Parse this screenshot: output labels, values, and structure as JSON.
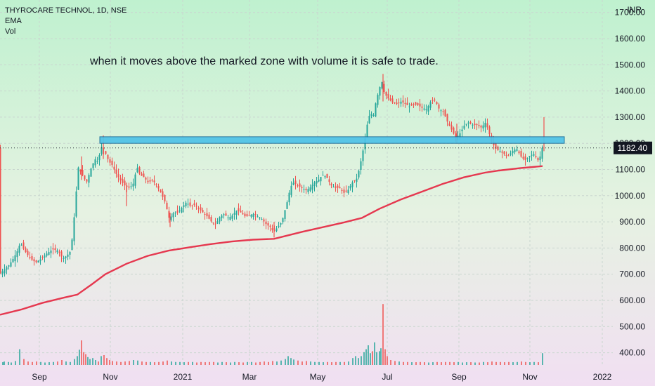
{
  "legend": {
    "symbol": "THYROCARE TECHNOL, 1D, NSE",
    "ema": "EMA",
    "vol": "Vol"
  },
  "annotation": "when it moves above the marked zone with volume it is safe to trade.",
  "currency": "INR",
  "price_badge": "1182.40",
  "colors": {
    "up": "#26a69a",
    "down": "#ef5350",
    "ema": "#e5384f",
    "zone_fill": "#4fc3e8",
    "zone_stroke": "#1a6f9c",
    "background_top": "#c2f0d0",
    "background_bottom": "#f0dff0",
    "badge": "#131722"
  },
  "chart_data": {
    "type": "candlestick",
    "x_tick_labels": [
      "Sep",
      "Nov",
      "2021",
      "Mar",
      "May",
      "Jul",
      "Sep",
      "Nov",
      "2022"
    ],
    "y_tick_labels": [
      "1700.00",
      "1600.00",
      "1500.00",
      "1400.00",
      "1300.00",
      "1200.00",
      "1100.00",
      "1000.00",
      "900.00",
      "800.00",
      "700.00",
      "600.00",
      "500.00",
      "400.00"
    ],
    "y_tick_values": [
      1700,
      1600,
      1500,
      1400,
      1300,
      1200,
      1100,
      1000,
      900,
      800,
      700,
      600,
      500,
      400
    ],
    "ylim": [
      345,
      1735
    ],
    "grid": true,
    "last_price": 1182.4,
    "marked_zone": [
      1200,
      1225
    ],
    "price_path": [
      [
        0,
        700
      ],
      [
        8,
        720
      ],
      [
        14,
        735
      ],
      [
        20,
        760
      ],
      [
        26,
        790
      ],
      [
        30,
        820
      ],
      [
        36,
        790
      ],
      [
        44,
        760
      ],
      [
        52,
        745
      ],
      [
        60,
        760
      ],
      [
        68,
        780
      ],
      [
        76,
        795
      ],
      [
        84,
        790
      ],
      [
        90,
        760
      ],
      [
        96,
        770
      ],
      [
        102,
        790
      ],
      [
        108,
        960
      ],
      [
        112,
        1110
      ],
      [
        118,
        1080
      ],
      [
        124,
        1050
      ],
      [
        130,
        1100
      ],
      [
        136,
        1140
      ],
      [
        140,
        1130
      ],
      [
        146,
        1190
      ],
      [
        150,
        1170
      ],
      [
        156,
        1130
      ],
      [
        160,
        1120
      ],
      [
        166,
        1085
      ],
      [
        172,
        1060
      ],
      [
        178,
        1040
      ],
      [
        184,
        1030
      ],
      [
        190,
        1040
      ],
      [
        196,
        1110
      ],
      [
        200,
        1080
      ],
      [
        206,
        1070
      ],
      [
        212,
        1050
      ],
      [
        218,
        1060
      ],
      [
        224,
        1040
      ],
      [
        230,
        1010
      ],
      [
        236,
        975
      ],
      [
        242,
        910
      ],
      [
        248,
        935
      ],
      [
        254,
        935
      ],
      [
        260,
        955
      ],
      [
        266,
        975
      ],
      [
        272,
        960
      ],
      [
        278,
        965
      ],
      [
        284,
        950
      ],
      [
        290,
        935
      ],
      [
        296,
        920
      ],
      [
        302,
        900
      ],
      [
        308,
        890
      ],
      [
        314,
        920
      ],
      [
        320,
        930
      ],
      [
        326,
        915
      ],
      [
        332,
        925
      ],
      [
        338,
        945
      ],
      [
        344,
        935
      ],
      [
        350,
        920
      ],
      [
        356,
        925
      ],
      [
        362,
        930
      ],
      [
        368,
        920
      ],
      [
        374,
        910
      ],
      [
        380,
        890
      ],
      [
        386,
        880
      ],
      [
        390,
        860
      ],
      [
        396,
        880
      ],
      [
        402,
        900
      ],
      [
        406,
        940
      ],
      [
        410,
        980
      ],
      [
        414,
        1030
      ],
      [
        418,
        1050
      ],
      [
        424,
        1040
      ],
      [
        430,
        1030
      ],
      [
        436,
        1020
      ],
      [
        442,
        1030
      ],
      [
        448,
        1050
      ],
      [
        454,
        1060
      ],
      [
        460,
        1080
      ],
      [
        466,
        1070
      ],
      [
        472,
        1040
      ],
      [
        478,
        1030
      ],
      [
        484,
        1030
      ],
      [
        490,
        1010
      ],
      [
        496,
        1020
      ],
      [
        502,
        1050
      ],
      [
        508,
        1060
      ],
      [
        512,
        1100
      ],
      [
        516,
        1150
      ],
      [
        520,
        1210
      ],
      [
        524,
        1280
      ],
      [
        528,
        1320
      ],
      [
        532,
        1300
      ],
      [
        536,
        1360
      ],
      [
        540,
        1400
      ],
      [
        544,
        1440
      ],
      [
        548,
        1390
      ],
      [
        554,
        1370
      ],
      [
        560,
        1355
      ],
      [
        566,
        1350
      ],
      [
        572,
        1360
      ],
      [
        578,
        1350
      ],
      [
        584,
        1340
      ],
      [
        590,
        1350
      ],
      [
        596,
        1345
      ],
      [
        602,
        1335
      ],
      [
        608,
        1330
      ],
      [
        614,
        1360
      ],
      [
        620,
        1365
      ],
      [
        626,
        1330
      ],
      [
        632,
        1320
      ],
      [
        638,
        1280
      ],
      [
        644,
        1250
      ],
      [
        650,
        1220
      ],
      [
        656,
        1240
      ],
      [
        662,
        1270
      ],
      [
        668,
        1280
      ],
      [
        674,
        1270
      ],
      [
        680,
        1270
      ],
      [
        686,
        1260
      ],
      [
        692,
        1280
      ],
      [
        696,
        1250
      ],
      [
        700,
        1210
      ],
      [
        706,
        1180
      ],
      [
        712,
        1170
      ],
      [
        718,
        1160
      ],
      [
        724,
        1150
      ],
      [
        730,
        1170
      ],
      [
        736,
        1180
      ],
      [
        742,
        1150
      ],
      [
        748,
        1135
      ],
      [
        754,
        1150
      ],
      [
        760,
        1160
      ],
      [
        764,
        1145
      ],
      [
        768,
        1130
      ],
      [
        772,
        1182.4
      ]
    ],
    "ema_path": [
      [
        0,
        545
      ],
      [
        30,
        565
      ],
      [
        60,
        590
      ],
      [
        90,
        610
      ],
      [
        110,
        622
      ],
      [
        130,
        660
      ],
      [
        150,
        700
      ],
      [
        180,
        740
      ],
      [
        210,
        770
      ],
      [
        240,
        790
      ],
      [
        270,
        803
      ],
      [
        300,
        815
      ],
      [
        330,
        825
      ],
      [
        360,
        832
      ],
      [
        390,
        835
      ],
      [
        405,
        845
      ],
      [
        430,
        862
      ],
      [
        460,
        880
      ],
      [
        490,
        898
      ],
      [
        515,
        915
      ],
      [
        540,
        950
      ],
      [
        570,
        985
      ],
      [
        600,
        1015
      ],
      [
        630,
        1045
      ],
      [
        660,
        1070
      ],
      [
        690,
        1088
      ],
      [
        710,
        1096
      ],
      [
        740,
        1105
      ],
      [
        772,
        1113
      ]
    ],
    "volume_bars": [
      [
        4,
        0.28
      ],
      [
        6,
        0.35
      ],
      [
        12,
        0.3
      ],
      [
        16,
        0.25
      ],
      [
        22,
        0.4
      ],
      [
        28,
        1.6
      ],
      [
        34,
        0.6
      ],
      [
        40,
        0.35
      ],
      [
        46,
        0.3
      ],
      [
        52,
        0.35
      ],
      [
        58,
        0.3
      ],
      [
        64,
        0.25
      ],
      [
        70,
        0.28
      ],
      [
        76,
        0.3
      ],
      [
        82,
        0.35
      ],
      [
        88,
        0.5
      ],
      [
        94,
        0.35
      ],
      [
        100,
        0.3
      ],
      [
        106,
        0.6
      ],
      [
        110,
        0.9
      ],
      [
        113,
        1.55
      ],
      [
        116,
        2.5
      ],
      [
        119,
        1.3
      ],
      [
        122,
        1.1
      ],
      [
        125,
        0.8
      ],
      [
        128,
        0.6
      ],
      [
        132,
        0.7
      ],
      [
        136,
        0.5
      ],
      [
        140,
        0.35
      ],
      [
        144,
        0.9
      ],
      [
        148,
        1.0
      ],
      [
        152,
        0.7
      ],
      [
        156,
        0.5
      ],
      [
        160,
        0.4
      ],
      [
        166,
        0.35
      ],
      [
        172,
        0.3
      ],
      [
        178,
        0.35
      ],
      [
        184,
        0.4
      ],
      [
        190,
        0.5
      ],
      [
        196,
        0.45
      ],
      [
        202,
        0.35
      ],
      [
        208,
        0.3
      ],
      [
        214,
        0.3
      ],
      [
        220,
        0.28
      ],
      [
        226,
        0.3
      ],
      [
        232,
        0.35
      ],
      [
        238,
        0.45
      ],
      [
        244,
        0.35
      ],
      [
        250,
        0.3
      ],
      [
        256,
        0.3
      ],
      [
        262,
        0.28
      ],
      [
        268,
        0.3
      ],
      [
        274,
        0.3
      ],
      [
        280,
        0.25
      ],
      [
        286,
        0.3
      ],
      [
        292,
        0.28
      ],
      [
        298,
        0.3
      ],
      [
        304,
        0.3
      ],
      [
        310,
        0.25
      ],
      [
        316,
        0.3
      ],
      [
        322,
        0.28
      ],
      [
        328,
        0.25
      ],
      [
        334,
        0.3
      ],
      [
        340,
        0.28
      ],
      [
        346,
        0.25
      ],
      [
        352,
        0.3
      ],
      [
        358,
        0.3
      ],
      [
        364,
        0.25
      ],
      [
        370,
        0.3
      ],
      [
        376,
        0.35
      ],
      [
        382,
        0.3
      ],
      [
        388,
        0.4
      ],
      [
        394,
        0.35
      ],
      [
        400,
        0.45
      ],
      [
        406,
        0.6
      ],
      [
        410,
        0.9
      ],
      [
        414,
        0.7
      ],
      [
        418,
        0.55
      ],
      [
        424,
        0.45
      ],
      [
        430,
        0.35
      ],
      [
        436,
        0.4
      ],
      [
        442,
        0.35
      ],
      [
        448,
        0.3
      ],
      [
        454,
        0.3
      ],
      [
        460,
        0.28
      ],
      [
        466,
        0.3
      ],
      [
        472,
        0.28
      ],
      [
        478,
        0.3
      ],
      [
        484,
        0.3
      ],
      [
        490,
        0.3
      ],
      [
        496,
        0.35
      ],
      [
        502,
        0.7
      ],
      [
        506,
        0.9
      ],
      [
        510,
        0.7
      ],
      [
        514,
        0.9
      ],
      [
        518,
        1.3
      ],
      [
        521,
        1.6
      ],
      [
        524,
        2.0
      ],
      [
        527,
        1.2
      ],
      [
        530,
        1.4
      ],
      [
        533,
        2.3
      ],
      [
        536,
        1.3
      ],
      [
        540,
        1.4
      ],
      [
        542,
        1.7
      ],
      [
        545,
        6.2
      ],
      [
        548,
        1.6
      ],
      [
        551,
        0.9
      ],
      [
        556,
        0.5
      ],
      [
        562,
        0.4
      ],
      [
        568,
        0.35
      ],
      [
        574,
        0.3
      ],
      [
        580,
        0.3
      ],
      [
        586,
        0.28
      ],
      [
        592,
        0.28
      ],
      [
        598,
        0.3
      ],
      [
        604,
        0.28
      ],
      [
        610,
        0.25
      ],
      [
        616,
        0.28
      ],
      [
        622,
        0.3
      ],
      [
        628,
        0.28
      ],
      [
        634,
        0.3
      ],
      [
        640,
        0.3
      ],
      [
        646,
        0.28
      ],
      [
        652,
        0.3
      ],
      [
        658,
        0.25
      ],
      [
        664,
        0.28
      ],
      [
        670,
        0.28
      ],
      [
        676,
        0.25
      ],
      [
        682,
        0.25
      ],
      [
        688,
        0.3
      ],
      [
        694,
        0.28
      ],
      [
        700,
        0.35
      ],
      [
        706,
        0.3
      ],
      [
        712,
        0.3
      ],
      [
        718,
        0.28
      ],
      [
        724,
        0.3
      ],
      [
        730,
        0.28
      ],
      [
        736,
        0.3
      ],
      [
        742,
        0.35
      ],
      [
        748,
        0.3
      ],
      [
        754,
        0.28
      ],
      [
        760,
        0.3
      ],
      [
        766,
        0.28
      ],
      [
        772,
        1.2
      ]
    ],
    "x_tick_positions": [
      56,
      157,
      260,
      355,
      452,
      551,
      653,
      754,
      857
    ]
  }
}
